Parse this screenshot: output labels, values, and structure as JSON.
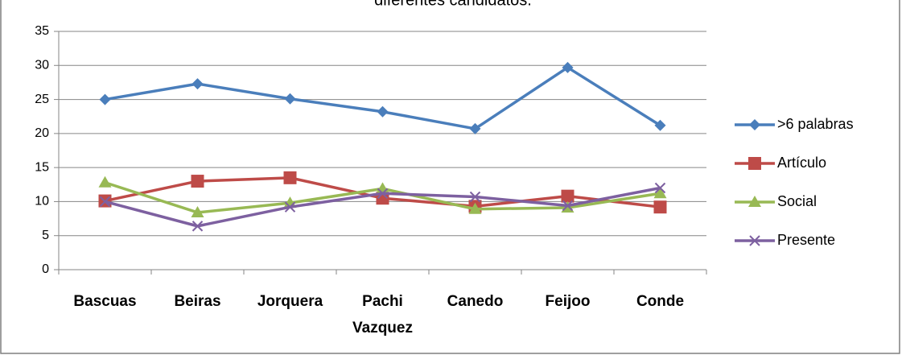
{
  "chart_data": {
    "type": "line",
    "title": "diferentes candidatos.",
    "categories": [
      "Bascuas",
      "Beiras",
      "Jorquera",
      "Pachi Vazquez",
      "Canedo",
      "Feijoo",
      "Conde"
    ],
    "series": [
      {
        "name": ">6 palabras",
        "color": "#4a7ebb",
        "marker": "diamond",
        "values": [
          25.0,
          27.3,
          25.1,
          23.2,
          20.7,
          29.7,
          21.2
        ]
      },
      {
        "name": "Artículo",
        "color": "#be4b48",
        "marker": "square",
        "values": [
          10.1,
          13.0,
          13.5,
          10.5,
          9.3,
          10.8,
          9.2
        ]
      },
      {
        "name": "Social",
        "color": "#98b954",
        "marker": "triangle",
        "values": [
          12.8,
          8.4,
          9.8,
          11.9,
          8.9,
          9.1,
          11.2
        ]
      },
      {
        "name": "Presente",
        "color": "#7d60a0",
        "marker": "x",
        "values": [
          10.0,
          6.4,
          9.2,
          11.2,
          10.7,
          9.4,
          12.0
        ]
      }
    ],
    "ylim": [
      0,
      35
    ],
    "yticks": [
      0,
      5,
      10,
      15,
      20,
      25,
      30,
      35
    ],
    "grid": true,
    "legend": "right"
  }
}
